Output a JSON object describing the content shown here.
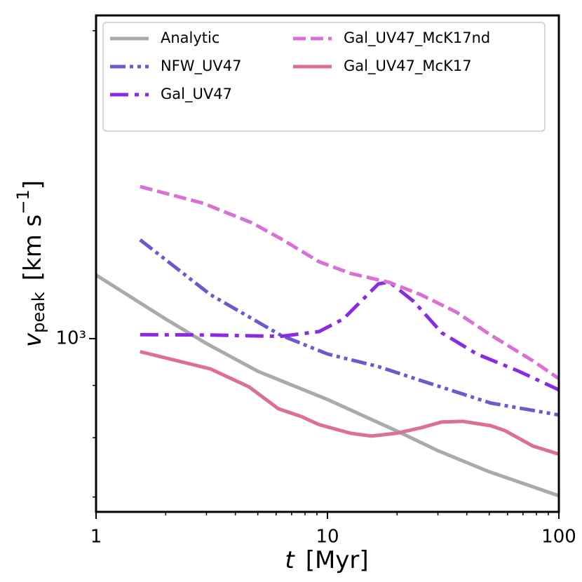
{
  "chart_data": {
    "type": "line",
    "x_label": {
      "symbol": "t",
      "unit": "[Myr]"
    },
    "y_label": {
      "symbol": "v",
      "subscript": "peak",
      "unit": "[km s",
      "unit_exponent": "−1",
      "unit_close": "]"
    },
    "xscale": "log",
    "yscale": "log",
    "xlim": [
      1,
      100
    ],
    "ylim": [
      677,
      2070
    ],
    "xticks": [
      1,
      10,
      100
    ],
    "xminor_ticks": [
      2,
      3,
      4,
      5,
      6,
      7,
      8,
      9,
      20,
      30,
      40,
      50,
      60,
      70,
      80,
      90
    ],
    "yticks": [
      {
        "value": 1000,
        "label": "10³"
      }
    ],
    "yminor_ticks": [
      700,
      800,
      900,
      2000
    ],
    "legend": "upper center",
    "legend_columns": 2,
    "grid": false,
    "series": [
      {
        "name": "Analytic",
        "color": "#aaaaaa",
        "linestyle": "solid",
        "x": [
          1,
          2,
          3,
          5,
          10,
          20,
          30,
          50,
          100
        ],
        "values": [
          1154,
          1045,
          989,
          929,
          872,
          812,
          777,
          741,
          702
        ]
      },
      {
        "name": "NFW_UV47",
        "color": "#6a5acd",
        "linestyle": "dashdotdot",
        "x": [
          1.55,
          3.12,
          6.26,
          10,
          16.6,
          25.3,
          50.8,
          100
        ],
        "values": [
          1249,
          1104,
          1008,
          966,
          939,
          910,
          865,
          842
        ]
      },
      {
        "name": "Gal_UV47",
        "color": "#8a2be2",
        "linestyle": "dashdot",
        "x": [
          1.55,
          3.12,
          6.26,
          9.2,
          11.7,
          16.6,
          18.5,
          23.6,
          31.2,
          44.2,
          67.2,
          100
        ],
        "values": [
          1009,
          1008,
          1005,
          1016,
          1045,
          1131,
          1136,
          1087,
          1013,
          966,
          929,
          891
        ]
      },
      {
        "name": "Gal_UV47_McK17nd",
        "color": "#da70d6",
        "linestyle": "dashed",
        "x": [
          1.55,
          2.91,
          4.74,
          6.26,
          9.2,
          12.6,
          18.5,
          25.3,
          35.9,
          50.8,
          77.3,
          100
        ],
        "values": [
          1408,
          1356,
          1297,
          1253,
          1189,
          1158,
          1135,
          1104,
          1062,
          1008,
          951,
          914
        ]
      },
      {
        "name": "Gal_UV47_McK17",
        "color": "#db7093",
        "linestyle": "solid",
        "x": [
          1.55,
          3.12,
          4.58,
          6.13,
          7.72,
          9.2,
          12.6,
          15.5,
          19.8,
          25.3,
          31.2,
          38.5,
          50.8,
          58.4,
          77.3,
          100
        ],
        "values": [
          971,
          934,
          897,
          854,
          839,
          824,
          808,
          803,
          808,
          818,
          829,
          830,
          822,
          813,
          785,
          771
        ]
      }
    ]
  }
}
